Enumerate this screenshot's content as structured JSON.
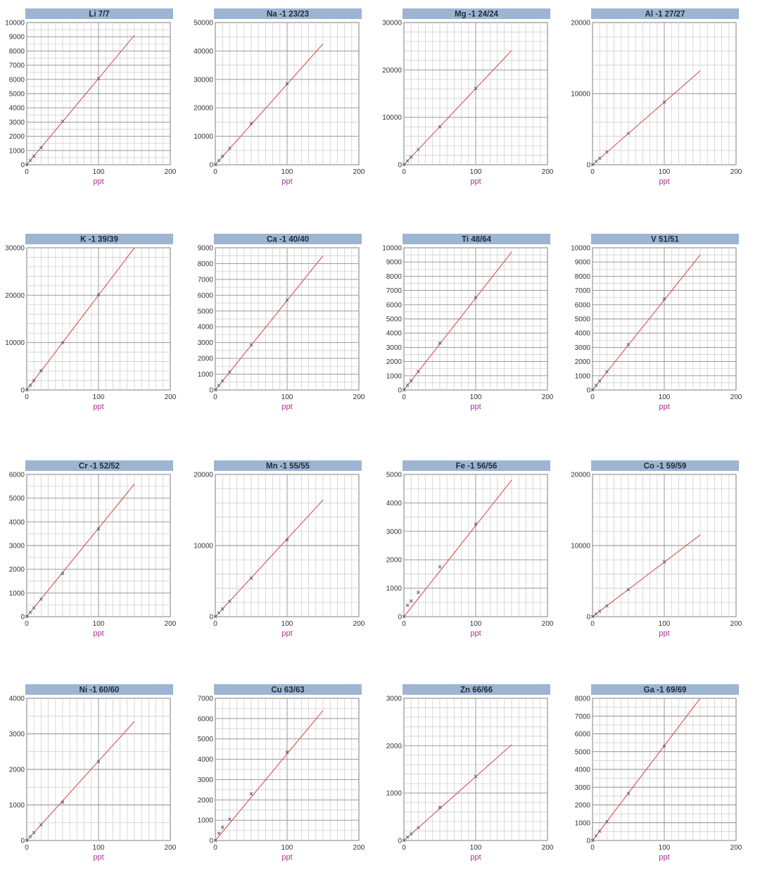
{
  "chart_data": [
    {
      "type": "line",
      "title": "Li 7/7",
      "xlabel": "ppt",
      "ylabel": "",
      "xlim": [
        0,
        200
      ],
      "ylim": [
        0,
        10000
      ],
      "xticks": [
        0,
        100,
        200
      ],
      "yticks": [
        0,
        1000,
        2000,
        3000,
        4000,
        5000,
        6000,
        7000,
        8000,
        9000,
        10000
      ],
      "points": {
        "x": [
          0,
          5,
          10,
          20,
          50,
          100
        ],
        "y": [
          0,
          300,
          600,
          1200,
          3050,
          6050
        ]
      },
      "fit_line": {
        "x": [
          0,
          150
        ],
        "y": [
          0,
          9100
        ]
      }
    },
    {
      "type": "line",
      "title": "Na -1 23/23",
      "xlabel": "ppt",
      "ylabel": "",
      "xlim": [
        0,
        200
      ],
      "ylim": [
        0,
        50000
      ],
      "xticks": [
        0,
        100,
        200
      ],
      "yticks": [
        0,
        10000,
        20000,
        30000,
        40000,
        50000
      ],
      "points": {
        "x": [
          0,
          5,
          10,
          20,
          50,
          100
        ],
        "y": [
          0,
          1500,
          3000,
          5800,
          14500,
          28500
        ]
      },
      "fit_line": {
        "x": [
          0,
          150
        ],
        "y": [
          0,
          42500
        ]
      }
    },
    {
      "type": "line",
      "title": "Mg -1 24/24",
      "xlabel": "ppt",
      "ylabel": "",
      "xlim": [
        0,
        200
      ],
      "ylim": [
        0,
        30000
      ],
      "xticks": [
        0,
        100,
        200
      ],
      "yticks": [
        0,
        10000,
        20000,
        30000
      ],
      "points": {
        "x": [
          0,
          5,
          10,
          20,
          50,
          100
        ],
        "y": [
          0,
          800,
          1600,
          3200,
          8000,
          16100
        ]
      },
      "fit_line": {
        "x": [
          0,
          150
        ],
        "y": [
          0,
          24100
        ]
      }
    },
    {
      "type": "line",
      "title": "Al -1 27/27",
      "xlabel": "ppt",
      "ylabel": "",
      "xlim": [
        0,
        200
      ],
      "ylim": [
        0,
        20000
      ],
      "xticks": [
        0,
        100,
        200
      ],
      "yticks": [
        0,
        10000,
        20000
      ],
      "points": {
        "x": [
          0,
          5,
          10,
          20,
          50,
          100
        ],
        "y": [
          0,
          450,
          900,
          1800,
          4400,
          8800
        ]
      },
      "fit_line": {
        "x": [
          0,
          150
        ],
        "y": [
          0,
          13200
        ]
      }
    },
    {
      "type": "line",
      "title": "K -1 39/39",
      "xlabel": "ppt",
      "ylabel": "",
      "xlim": [
        0,
        200
      ],
      "ylim": [
        0,
        30000
      ],
      "xticks": [
        0,
        100,
        200
      ],
      "yticks": [
        0,
        10000,
        20000,
        30000
      ],
      "points": {
        "x": [
          0,
          5,
          10,
          20,
          50,
          100
        ],
        "y": [
          0,
          1000,
          2000,
          4100,
          10000,
          20100
        ]
      },
      "fit_line": {
        "x": [
          0,
          150
        ],
        "y": [
          0,
          30000
        ]
      }
    },
    {
      "type": "line",
      "title": "Ca -1 40/40",
      "xlabel": "ppt",
      "ylabel": "",
      "xlim": [
        0,
        200
      ],
      "ylim": [
        0,
        9000
      ],
      "xticks": [
        0,
        100,
        200
      ],
      "yticks": [
        0,
        1000,
        2000,
        3000,
        4000,
        5000,
        6000,
        7000,
        8000,
        9000
      ],
      "points": {
        "x": [
          0,
          5,
          10,
          20,
          50,
          100
        ],
        "y": [
          0,
          290,
          580,
          1150,
          2850,
          5700
        ]
      },
      "fit_line": {
        "x": [
          0,
          150
        ],
        "y": [
          0,
          8500
        ]
      }
    },
    {
      "type": "line",
      "title": "Ti 48/64",
      "xlabel": "ppt",
      "ylabel": "",
      "xlim": [
        0,
        200
      ],
      "ylim": [
        0,
        10000
      ],
      "xticks": [
        0,
        100,
        200
      ],
      "yticks": [
        0,
        1000,
        2000,
        3000,
        4000,
        5000,
        6000,
        7000,
        8000,
        9000,
        10000
      ],
      "points": {
        "x": [
          0,
          5,
          10,
          20,
          50,
          100
        ],
        "y": [
          0,
          330,
          650,
          1300,
          3300,
          6500
        ]
      },
      "fit_line": {
        "x": [
          0,
          150
        ],
        "y": [
          0,
          9700
        ]
      }
    },
    {
      "type": "line",
      "title": "V 51/51",
      "xlabel": "ppt",
      "ylabel": "",
      "xlim": [
        0,
        200
      ],
      "ylim": [
        0,
        10000
      ],
      "xticks": [
        0,
        100,
        200
      ],
      "yticks": [
        0,
        1000,
        2000,
        3000,
        4000,
        5000,
        6000,
        7000,
        8000,
        9000,
        10000
      ],
      "points": {
        "x": [
          0,
          5,
          10,
          20,
          50,
          100
        ],
        "y": [
          0,
          320,
          640,
          1280,
          3200,
          6400
        ]
      },
      "fit_line": {
        "x": [
          0,
          150
        ],
        "y": [
          0,
          9500
        ]
      }
    },
    {
      "type": "line",
      "title": "Cr -1 52/52",
      "xlabel": "ppt",
      "ylabel": "",
      "xlim": [
        0,
        200
      ],
      "ylim": [
        0,
        6000
      ],
      "xticks": [
        0,
        100,
        200
      ],
      "yticks": [
        0,
        1000,
        2000,
        3000,
        4000,
        5000,
        6000
      ],
      "points": {
        "x": [
          0,
          5,
          10,
          20,
          50,
          100
        ],
        "y": [
          0,
          180,
          370,
          740,
          1820,
          3700
        ]
      },
      "fit_line": {
        "x": [
          0,
          150
        ],
        "y": [
          0,
          5600
        ]
      }
    },
    {
      "type": "line",
      "title": "Mn -1 55/55",
      "xlabel": "ppt",
      "ylabel": "",
      "xlim": [
        0,
        200
      ],
      "ylim": [
        0,
        20000
      ],
      "xticks": [
        0,
        100,
        200
      ],
      "yticks": [
        0,
        10000,
        20000
      ],
      "points": {
        "x": [
          0,
          5,
          10,
          20,
          50,
          100
        ],
        "y": [
          0,
          540,
          1080,
          2160,
          5400,
          10800
        ]
      },
      "fit_line": {
        "x": [
          0,
          150
        ],
        "y": [
          0,
          16400
        ]
      }
    },
    {
      "type": "line",
      "title": "Fe -1 56/56",
      "xlabel": "ppt",
      "ylabel": "",
      "xlim": [
        0,
        200
      ],
      "ylim": [
        0,
        5000
      ],
      "xticks": [
        0,
        100,
        200
      ],
      "yticks": [
        0,
        1000,
        2000,
        3000,
        4000,
        5000
      ],
      "points": {
        "x": [
          0,
          5,
          10,
          20,
          50,
          100
        ],
        "y": [
          0,
          400,
          550,
          850,
          1750,
          3250
        ]
      },
      "fit_line": {
        "x": [
          0,
          150
        ],
        "y": [
          0,
          4800
        ]
      }
    },
    {
      "type": "line",
      "title": "Co -1 59/59",
      "xlabel": "ppt",
      "ylabel": "",
      "xlim": [
        0,
        200
      ],
      "ylim": [
        0,
        20000
      ],
      "xticks": [
        0,
        100,
        200
      ],
      "yticks": [
        0,
        10000,
        20000
      ],
      "points": {
        "x": [
          0,
          5,
          10,
          20,
          50,
          100
        ],
        "y": [
          0,
          380,
          760,
          1520,
          3800,
          7700
        ]
      },
      "fit_line": {
        "x": [
          0,
          150
        ],
        "y": [
          0,
          11500
        ]
      }
    },
    {
      "type": "line",
      "title": "Ni -1 60/60",
      "xlabel": "ppt",
      "ylabel": "",
      "xlim": [
        0,
        200
      ],
      "ylim": [
        0,
        4000
      ],
      "xticks": [
        0,
        100,
        200
      ],
      "yticks": [
        0,
        1000,
        2000,
        3000,
        4000
      ],
      "points": {
        "x": [
          0,
          5,
          10,
          20,
          50,
          100
        ],
        "y": [
          0,
          110,
          220,
          440,
          1080,
          2220
        ]
      },
      "fit_line": {
        "x": [
          0,
          150
        ],
        "y": [
          0,
          3350
        ]
      }
    },
    {
      "type": "line",
      "title": "Cu 63/63",
      "xlabel": "ppt",
      "ylabel": "",
      "xlim": [
        0,
        200
      ],
      "ylim": [
        0,
        7000
      ],
      "xticks": [
        0,
        100,
        200
      ],
      "yticks": [
        0,
        1000,
        2000,
        3000,
        4000,
        5000,
        6000,
        7000
      ],
      "points": {
        "x": [
          0,
          5,
          10,
          20,
          50,
          100
        ],
        "y": [
          0,
          350,
          650,
          1050,
          2300,
          4350
        ]
      },
      "fit_line": {
        "x": [
          0,
          150
        ],
        "y": [
          0,
          6400
        ]
      }
    },
    {
      "type": "line",
      "title": "Zn 66/66",
      "xlabel": "ppt",
      "ylabel": "",
      "xlim": [
        0,
        200
      ],
      "ylim": [
        0,
        3000
      ],
      "xticks": [
        0,
        100,
        200
      ],
      "yticks": [
        0,
        1000,
        2000,
        3000
      ],
      "points": {
        "x": [
          0,
          5,
          10,
          20,
          50,
          100
        ],
        "y": [
          0,
          70,
          140,
          270,
          700,
          1350
        ]
      },
      "fit_line": {
        "x": [
          0,
          150
        ],
        "y": [
          0,
          2020
        ]
      }
    },
    {
      "type": "line",
      "title": "Ga -1 69/69",
      "xlabel": "ppt",
      "ylabel": "",
      "xlim": [
        0,
        200
      ],
      "ylim": [
        0,
        8000
      ],
      "xticks": [
        0,
        100,
        200
      ],
      "yticks": [
        0,
        1000,
        2000,
        3000,
        4000,
        5000,
        6000,
        7000,
        8000
      ],
      "points": {
        "x": [
          0,
          5,
          10,
          20,
          50,
          100
        ],
        "y": [
          0,
          270,
          530,
          1060,
          2650,
          5300
        ]
      },
      "fit_line": {
        "x": [
          0,
          150
        ],
        "y": [
          0,
          8000
        ]
      }
    }
  ],
  "colors": {
    "title_bar": "#9db5d2",
    "fit_line": "#d9534f",
    "x_label": "#b0308f",
    "grid_major": "#8e8e8e",
    "grid_minor": "#c9c9c9",
    "marker": "#555a7a"
  }
}
